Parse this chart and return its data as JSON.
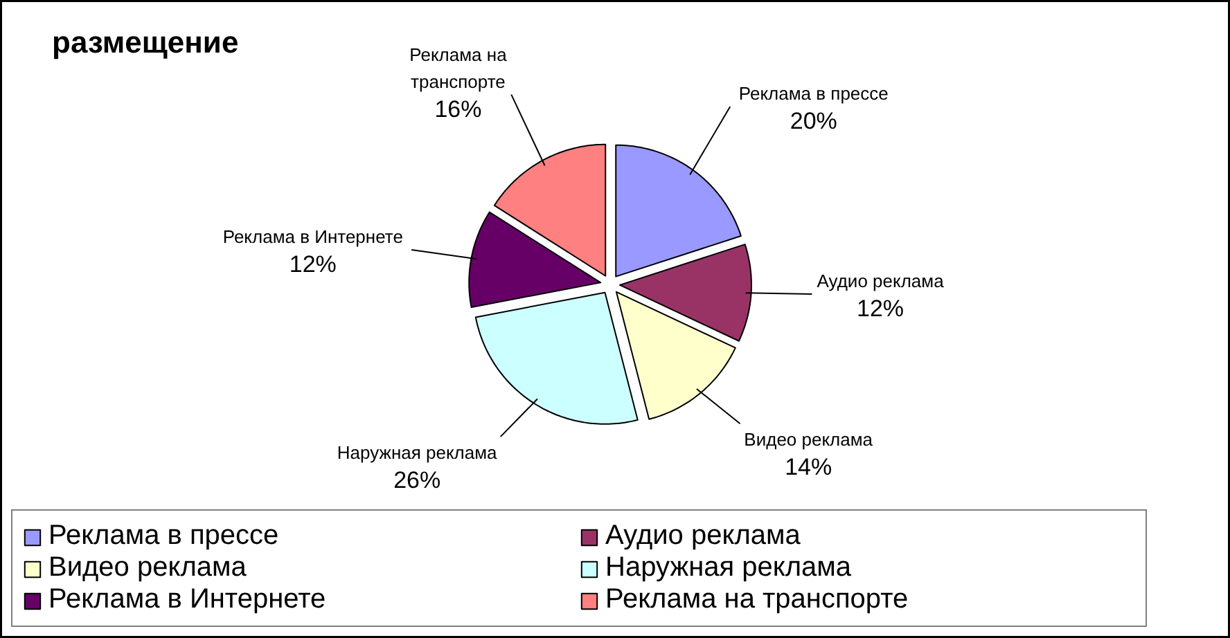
{
  "chart_data": {
    "type": "pie",
    "title": "размещение",
    "categories": [
      "Реклама в прессе",
      "Аудио реклама",
      "Видео реклама",
      "Наружная реклама",
      "Реклама в Интернете",
      "Реклама на транспорте"
    ],
    "values": [
      20,
      12,
      14,
      26,
      12,
      16
    ],
    "value_labels": [
      "20%",
      "12%",
      "14%",
      "26%",
      "12%",
      "16%"
    ],
    "colors": [
      "#9999ff",
      "#993366",
      "#ffffcc",
      "#ccffff",
      "#660066",
      "#ff8080"
    ],
    "legend": "bottom"
  }
}
